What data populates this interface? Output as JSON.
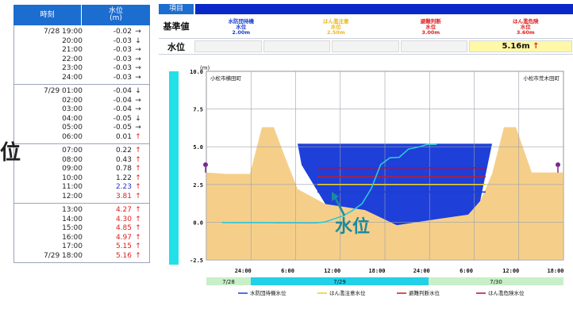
{
  "left_table": {
    "header_time": "時刻",
    "header_level": "水位",
    "header_unit": "(m)",
    "groups": [
      [
        {
          "time": "7/28 19:00",
          "value": "-0.02",
          "arrow": "→"
        },
        {
          "time": "20:00",
          "value": "-0.03",
          "arrow": "↓"
        },
        {
          "time": "21:00",
          "value": "-0.03",
          "arrow": "→"
        },
        {
          "time": "22:00",
          "value": "-0.03",
          "arrow": "→"
        },
        {
          "time": "23:00",
          "value": "-0.03",
          "arrow": "→"
        },
        {
          "time": "24:00",
          "value": "-0.03",
          "arrow": "→"
        }
      ],
      [
        {
          "time": "7/29 01:00",
          "value": "-0.04",
          "arrow": "↓"
        },
        {
          "time": "02:00",
          "value": "-0.04",
          "arrow": "→"
        },
        {
          "time": "03:00",
          "value": "-0.04",
          "arrow": "→"
        },
        {
          "time": "04:00",
          "value": "-0.05",
          "arrow": "↓"
        },
        {
          "time": "05:00",
          "value": "-0.05",
          "arrow": "→"
        },
        {
          "time": "06:00",
          "value": "0.01",
          "arrow": "↑"
        }
      ],
      [
        {
          "time": "07:00",
          "value": "0.22",
          "arrow": "↑"
        },
        {
          "time": "08:00",
          "value": "0.43",
          "arrow": "↑"
        },
        {
          "time": "09:00",
          "value": "0.78",
          "arrow": "↑"
        },
        {
          "time": "10:00",
          "value": "1.22",
          "arrow": "↑"
        },
        {
          "time": "11:00",
          "value": "2.23",
          "arrow": "↑",
          "color": "blue"
        },
        {
          "time": "12:00",
          "value": "3.81",
          "arrow": "↑",
          "color": "red"
        }
      ],
      [
        {
          "time": "13:00",
          "value": "4.27",
          "arrow": "↑",
          "color": "red"
        },
        {
          "time": "14:00",
          "value": "4.30",
          "arrow": "↑",
          "color": "red"
        },
        {
          "time": "15:00",
          "value": "4.85",
          "arrow": "↑",
          "color": "red"
        },
        {
          "time": "16:00",
          "value": "4.97",
          "arrow": "↑",
          "color": "red"
        },
        {
          "time": "17:00",
          "value": "5.15",
          "arrow": "↑",
          "color": "red"
        },
        {
          "time": "7/29 18:00",
          "value": "5.16",
          "arrow": "↑",
          "color": "red"
        }
      ]
    ]
  },
  "side_mark": "位",
  "header": {
    "item_label": "項目",
    "standard_label": "基準値",
    "level_label": "水位",
    "standards": [
      {
        "line1": "水防団待機",
        "line2": "水位",
        "line3": "2.00m",
        "color": "#1a3fd0"
      },
      {
        "line1": "はん濫注意",
        "line2": "水位",
        "line3": "2.50m",
        "color": "#e8b81c"
      },
      {
        "line1": "避難判断",
        "line2": "水位",
        "line3": "3.00m",
        "color": "#e02020"
      },
      {
        "line1": "はん濫危険",
        "line2": "水位",
        "line3": "3.60m",
        "color": "#e02020"
      }
    ],
    "current_level": "5.16m",
    "current_arrow": "↑"
  },
  "chart_data": {
    "type": "line",
    "unit": "(m)",
    "ylim": [
      -2.5,
      10.0
    ],
    "yticks": [
      "10.0",
      "7.5",
      "5.0",
      "2.5",
      "0.0",
      "-2.5"
    ],
    "ytick_values": [
      10.0,
      7.5,
      5.0,
      2.5,
      0.0,
      -2.5
    ],
    "x_labels": [
      "24:00",
      "6:00",
      "12:00",
      "18:00",
      "24:00",
      "6:00",
      "12:00",
      "18:00"
    ],
    "dates": [
      "7/28",
      "7/29",
      "7/30"
    ],
    "left_bank_label": "小松市横田町",
    "right_bank_label": "小松市荒木田町",
    "annotation": "水位",
    "thresholds": [
      {
        "name": "水防団待機水位",
        "value": 2.0,
        "color": "#1a3fd0"
      },
      {
        "name": "はん濫注意水位",
        "value": 2.5,
        "color": "#e8d020"
      },
      {
        "name": "避難判断水位",
        "value": 3.0,
        "color": "#d01818"
      },
      {
        "name": "はん濫危険水位",
        "value": 3.6,
        "color": "#b01040"
      }
    ],
    "current_water_level": 5.16,
    "hydrograph": [
      {
        "t": 0,
        "v": -0.02
      },
      {
        "t": 1,
        "v": -0.03
      },
      {
        "t": 2,
        "v": -0.03
      },
      {
        "t": 3,
        "v": -0.03
      },
      {
        "t": 4,
        "v": -0.03
      },
      {
        "t": 5,
        "v": -0.03
      },
      {
        "t": 6,
        "v": -0.04
      },
      {
        "t": 7,
        "v": -0.04
      },
      {
        "t": 8,
        "v": -0.04
      },
      {
        "t": 9,
        "v": -0.05
      },
      {
        "t": 10,
        "v": -0.05
      },
      {
        "t": 11,
        "v": 0.01
      },
      {
        "t": 12,
        "v": 0.22
      },
      {
        "t": 13,
        "v": 0.43
      },
      {
        "t": 14,
        "v": 0.78
      },
      {
        "t": 15,
        "v": 1.22
      },
      {
        "t": 16,
        "v": 2.23
      },
      {
        "t": 17,
        "v": 3.81
      },
      {
        "t": 18,
        "v": 4.27
      },
      {
        "t": 19,
        "v": 4.3
      },
      {
        "t": 20,
        "v": 4.85
      },
      {
        "t": 21,
        "v": 4.97
      },
      {
        "t": 22,
        "v": 5.15
      },
      {
        "t": 23,
        "v": 5.16
      }
    ]
  },
  "legend": [
    {
      "label": "水防団待機水位",
      "color": "#1a3fd0"
    },
    {
      "label": "はん濫注意水位",
      "color": "#e8d020"
    },
    {
      "label": "避難判断水位",
      "color": "#d01818"
    },
    {
      "label": "はん濫危険水位",
      "color": "#b01040"
    }
  ],
  "colors": {
    "header_blue": "#1c6dd0",
    "water_blue": "#1e3fd8",
    "ground_tan": "#f5cf8a",
    "hydrograph_cyan": "#2ec8d8"
  }
}
